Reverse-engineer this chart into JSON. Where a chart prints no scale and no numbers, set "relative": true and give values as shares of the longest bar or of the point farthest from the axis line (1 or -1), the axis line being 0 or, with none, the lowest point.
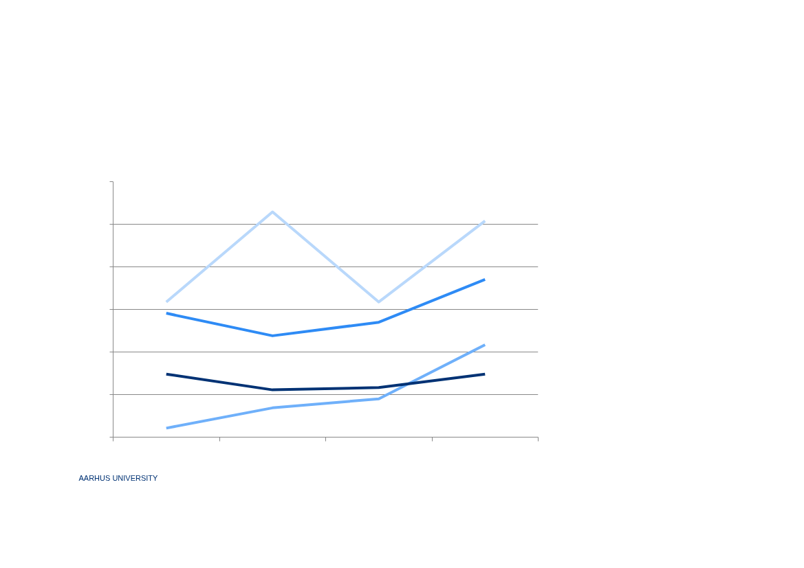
{
  "chart_data": {
    "type": "line",
    "relative": true,
    "categories": [
      null,
      null,
      null,
      null
    ],
    "series": [
      {
        "color": "#b9d8fb",
        "values": [
          0.6,
          1,
          0.6,
          0.96
        ]
      },
      {
        "color": "#6fb0fa",
        "values": [
          0.04,
          0.13,
          0.17,
          0.41
        ]
      },
      {
        "color": "#2e8bf5",
        "values": [
          0.55,
          0.45,
          0.51,
          0.7
        ]
      },
      {
        "color": "#003274",
        "values": [
          0.28,
          0.21,
          0.22,
          0.28
        ]
      }
    ],
    "grid": "y",
    "line_style": "solid",
    "marker": "none",
    "annotations": [
      "AARHUS UNIVERSITY"
    ]
  }
}
